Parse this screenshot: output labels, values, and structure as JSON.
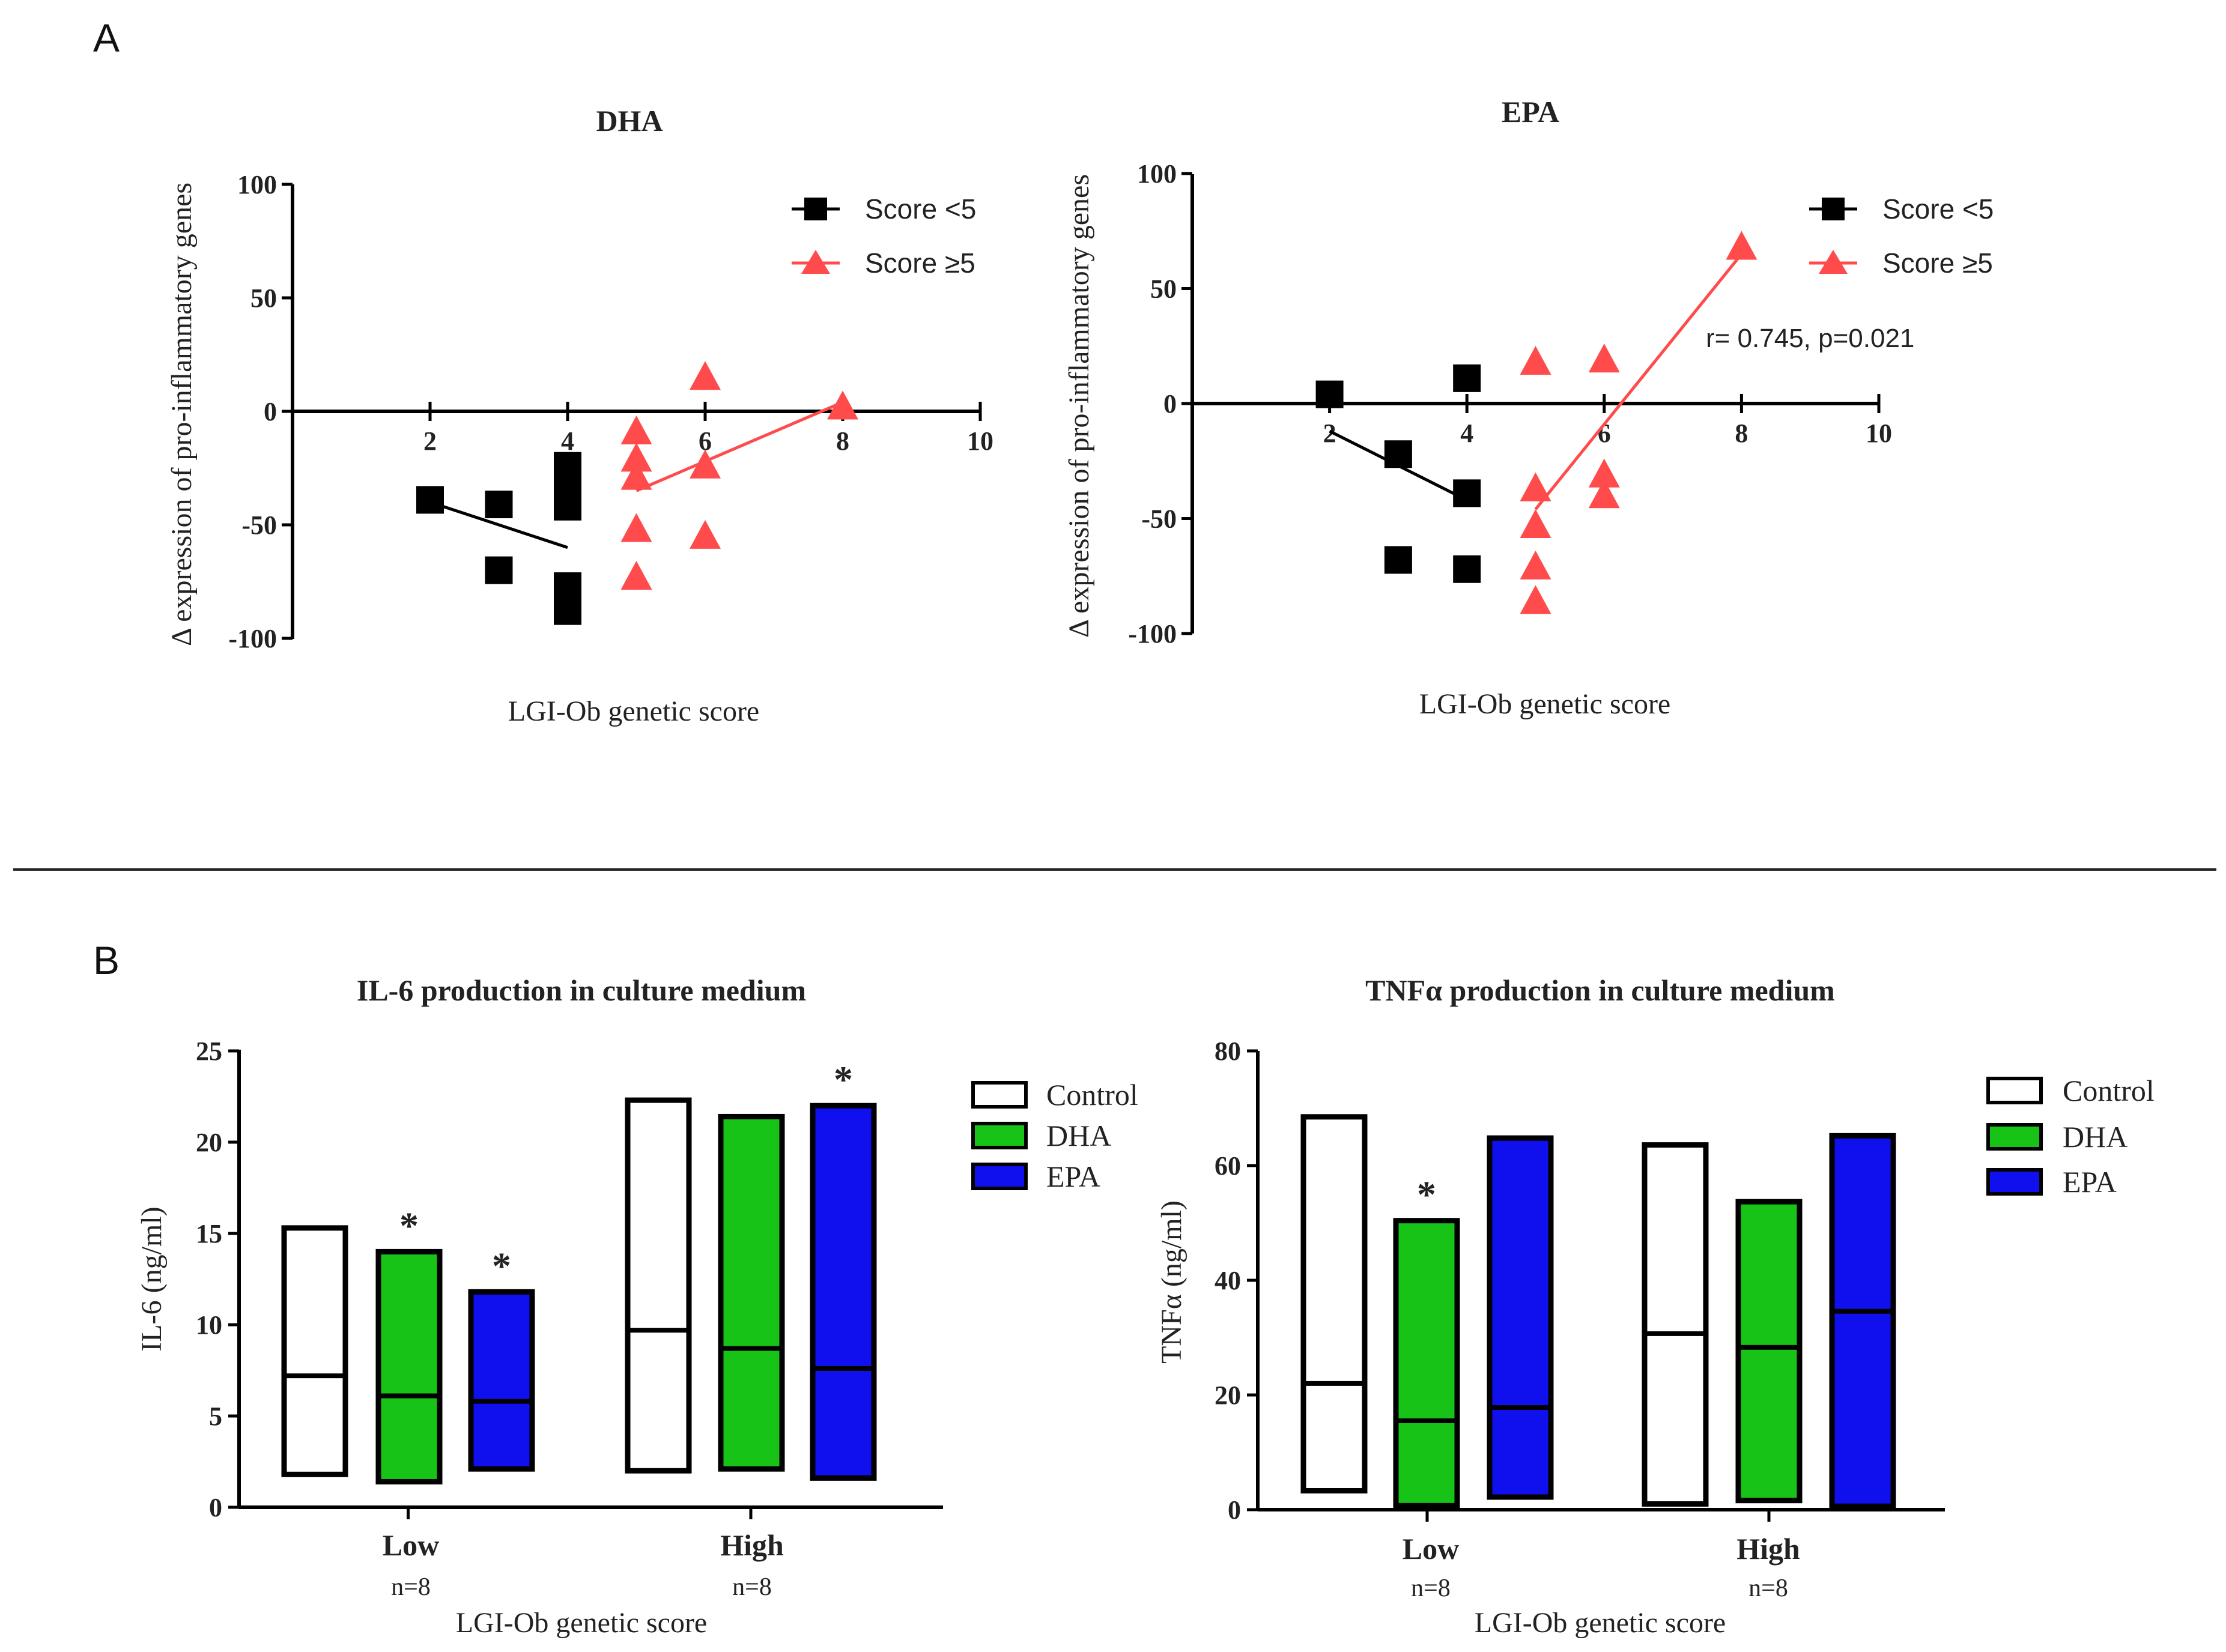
{
  "panels": {
    "a": "A",
    "b": "B"
  },
  "chart_data": [
    {
      "id": "dha-scatter",
      "type": "scatter",
      "title": "DHA",
      "xlabel": "LGI-Ob genetic score",
      "ylabel": "Δ expression of pro-inflammatory genes",
      "xlim": [
        0,
        10
      ],
      "ylim": [
        -100,
        100
      ],
      "xticks": [
        "2",
        "4",
        "6",
        "8",
        "10"
      ],
      "yticks": [
        "100",
        "50",
        "0",
        "-50",
        "-100"
      ],
      "legend_position": "top-right",
      "series": [
        {
          "name": "Score <5",
          "color": "#000000",
          "marker": "square",
          "points": [
            [
              2,
              -39
            ],
            [
              3,
              -41
            ],
            [
              3,
              -70
            ],
            [
              4,
              -24
            ],
            [
              4,
              -35
            ],
            [
              4,
              -42
            ],
            [
              4,
              -77
            ],
            [
              4,
              -88
            ]
          ],
          "fit": [
            [
              2,
              -40
            ],
            [
              4,
              -60
            ]
          ]
        },
        {
          "name": "Score ≥5",
          "color": "#ff4b4b",
          "marker": "triangle",
          "points": [
            [
              5,
              -9
            ],
            [
              5,
              -21
            ],
            [
              5,
              -29
            ],
            [
              5,
              -52
            ],
            [
              5,
              -73
            ],
            [
              6,
              15
            ],
            [
              6,
              -24
            ],
            [
              6,
              -55
            ],
            [
              8,
              2
            ]
          ],
          "fit": [
            [
              5,
              -35
            ],
            [
              8,
              4
            ]
          ]
        }
      ],
      "annotation": ""
    },
    {
      "id": "epa-scatter",
      "type": "scatter",
      "title": "EPA",
      "xlabel": "LGI-Ob genetic score",
      "ylabel": "Δ expression of pro-inflammatory genes",
      "xlim": [
        0,
        10
      ],
      "ylim": [
        -100,
        100
      ],
      "xticks": [
        "2",
        "4",
        "6",
        "8",
        "10"
      ],
      "yticks": [
        "100",
        "50",
        "0",
        "-50",
        "-100"
      ],
      "legend_position": "top-right",
      "series": [
        {
          "name": "Score <5",
          "color": "#000000",
          "marker": "square",
          "points": [
            [
              2,
              4
            ],
            [
              3,
              -22
            ],
            [
              3,
              -68
            ],
            [
              4,
              11
            ],
            [
              4,
              -39
            ],
            [
              4,
              -72
            ]
          ],
          "fit": [
            [
              2,
              -12
            ],
            [
              4,
              -42
            ]
          ]
        },
        {
          "name": "Score ≥5",
          "color": "#ff4b4b",
          "marker": "triangle",
          "points": [
            [
              5,
              18
            ],
            [
              5,
              -37
            ],
            [
              5,
              -53
            ],
            [
              5,
              -71
            ],
            [
              5,
              -86
            ],
            [
              6,
              19
            ],
            [
              6,
              -31
            ],
            [
              6,
              -40
            ],
            [
              8,
              68
            ]
          ],
          "fit": [
            [
              5,
              -46
            ],
            [
              8,
              65
            ]
          ]
        }
      ],
      "annotation": "r= 0.745, p=0.021"
    },
    {
      "id": "il6-bars",
      "type": "bar",
      "title": "IL-6 production in culture medium",
      "xlabel": "LGI-Ob genetic score",
      "ylabel": "IL-6 (ng/ml)",
      "ylim": [
        0,
        25
      ],
      "yticks": [
        "0",
        "5",
        "10",
        "15",
        "20",
        "25"
      ],
      "categories": [
        "Low",
        "High"
      ],
      "n_labels": [
        "n=8",
        "n=8"
      ],
      "legend_position": "top-right",
      "series": [
        {
          "name": "Control",
          "color": "#ffffff",
          "values": [
            [
              1.8,
              7.2,
              15.3
            ],
            [
              2.0,
              9.7,
              22.3
            ]
          ],
          "stars": [
            "",
            ""
          ]
        },
        {
          "name": "DHA",
          "color": "#16c316",
          "values": [
            [
              1.4,
              6.1,
              14.0
            ],
            [
              2.1,
              8.7,
              21.4
            ]
          ],
          "stars": [
            "*",
            ""
          ]
        },
        {
          "name": "EPA",
          "color": "#1010ee",
          "values": [
            [
              2.1,
              5.8,
              11.8
            ],
            [
              1.6,
              7.6,
              22.0
            ]
          ],
          "stars": [
            "*",
            "*"
          ]
        }
      ]
    },
    {
      "id": "tnfa-bars",
      "type": "bar",
      "title": "TNFα production in culture medium",
      "xlabel": "LGI-Ob genetic score",
      "ylabel": "TNFα (ng/ml)",
      "ylim": [
        0,
        80
      ],
      "yticks": [
        "0",
        "20",
        "40",
        "60",
        "80"
      ],
      "categories": [
        "Low",
        "High"
      ],
      "n_labels": [
        "n=8",
        "n=8"
      ],
      "legend_position": "top-right",
      "series": [
        {
          "name": "Control",
          "color": "#ffffff",
          "values": [
            [
              3.3,
              22.0,
              68.5
            ],
            [
              1.0,
              30.7,
              63.6
            ]
          ],
          "stars": [
            "",
            ""
          ]
        },
        {
          "name": "DHA",
          "color": "#16c316",
          "values": [
            [
              0.7,
              15.5,
              50.4
            ],
            [
              1.6,
              28.3,
              53.7
            ]
          ],
          "stars": [
            "*",
            ""
          ]
        },
        {
          "name": "EPA",
          "color": "#1010ee",
          "values": [
            [
              2.2,
              17.8,
              64.8
            ],
            [
              0.6,
              34.6,
              65.2
            ]
          ],
          "stars": [
            "",
            ""
          ]
        }
      ]
    }
  ]
}
